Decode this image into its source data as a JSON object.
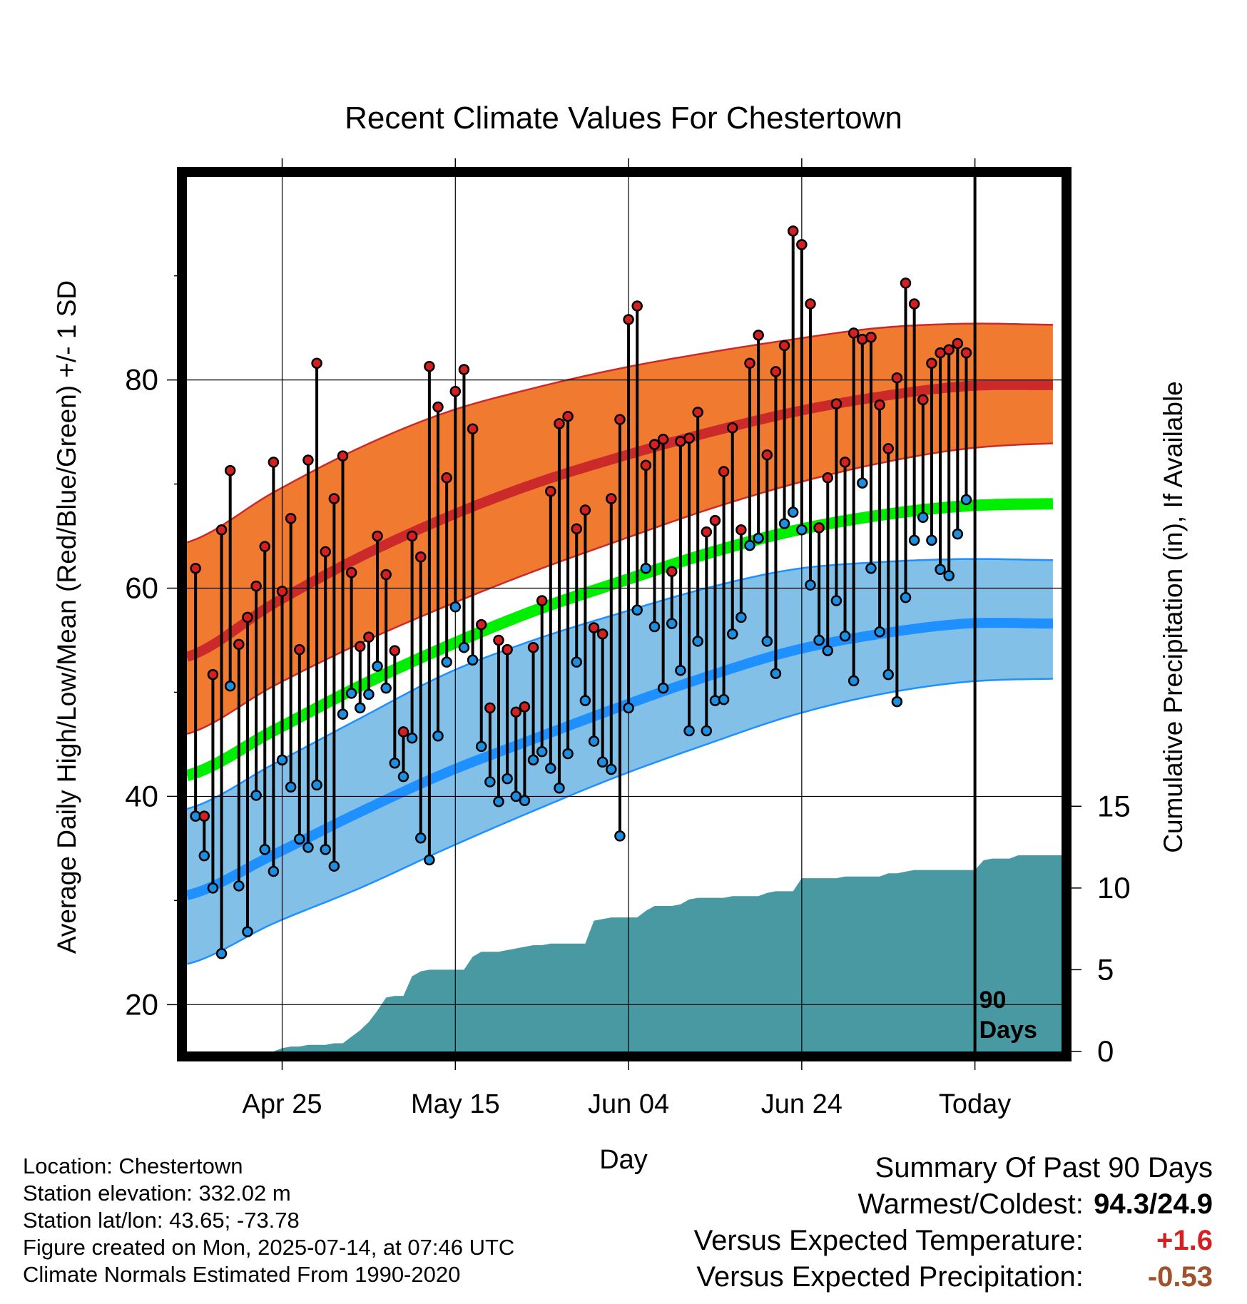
{
  "chart_data": {
    "type": "line",
    "title": "Recent Climate Values For Chestertown",
    "xlabel": "Day",
    "ylabel": "Average Daily High/Low/Mean (Red/Blue/Green) +/- 1 SD",
    "ylabel_right": "Cumulative Precipitation (in), If Available",
    "x_ticks": [
      "Apr 25",
      "May 15",
      "Jun 04",
      "Jun 24",
      "Today"
    ],
    "x_tick_days": [
      11,
      31,
      51,
      71,
      91
    ],
    "xlim": [
      0,
      101
    ],
    "y_ticks": [
      20,
      40,
      60,
      80
    ],
    "ylim": [
      15.5,
      99.5
    ],
    "y2_ticks": [
      0,
      5,
      10,
      15
    ],
    "y2lim": [
      0,
      53.5
    ],
    "today_label_line1": "90",
    "today_label_line2": "Days",
    "colors": {
      "high": "#cc2a2a",
      "high_band": "#f07b30",
      "low": "#1e90ff",
      "low_band": "#82c0e8",
      "mean": "#00ee00",
      "precip": "#4899a1",
      "high_dot": "#d42020",
      "low_dot": "#1e8fe0"
    },
    "normals": {
      "days": [
        0,
        10,
        20,
        30,
        40,
        50,
        60,
        70,
        80,
        90,
        100
      ],
      "high_mean": [
        53.4,
        58.5,
        63.0,
        66.8,
        70.0,
        72.6,
        74.9,
        76.9,
        78.4,
        79.4,
        79.5
      ],
      "high_upper": [
        64.4,
        69.2,
        73.5,
        76.9,
        79.2,
        81.1,
        82.6,
        83.9,
        85.0,
        85.4,
        85.3
      ],
      "high_lower": [
        46.0,
        50.6,
        54.7,
        58.3,
        61.6,
        64.6,
        67.5,
        70.0,
        72.0,
        73.4,
        73.9
      ],
      "low_mean": [
        30.5,
        34.4,
        38.5,
        42.3,
        45.5,
        48.6,
        51.5,
        54.0,
        55.6,
        56.6,
        56.6
      ],
      "low_upper": [
        38.8,
        43.1,
        47.5,
        51.8,
        55.0,
        57.6,
        60.0,
        61.8,
        62.5,
        62.8,
        62.7
      ],
      "low_lower": [
        23.9,
        27.8,
        31.2,
        35.0,
        38.6,
        42.0,
        45.0,
        47.8,
        49.8,
        51.0,
        51.3
      ],
      "mean": [
        42.0,
        46.3,
        50.6,
        54.4,
        57.8,
        60.6,
        63.3,
        65.5,
        67.0,
        67.9,
        68.1
      ]
    },
    "series": [
      {
        "name": "High",
        "x": [
          1,
          2,
          3,
          4,
          5,
          6,
          7,
          8,
          9,
          10,
          11,
          12,
          13,
          14,
          15,
          16,
          17,
          18,
          19,
          20,
          21,
          22,
          23,
          24,
          25,
          26,
          27,
          28,
          29,
          30,
          31,
          32,
          33,
          34,
          35,
          36,
          37,
          38,
          39,
          40,
          41,
          42,
          43,
          44,
          45,
          46,
          47,
          48,
          49,
          50,
          51,
          52,
          53,
          54,
          55,
          56,
          57,
          58,
          59,
          60,
          61,
          62,
          63,
          64,
          65,
          66,
          67,
          68,
          69,
          70,
          71,
          72,
          73,
          74,
          75,
          76,
          77,
          78,
          79,
          80,
          81,
          82,
          83,
          84,
          85,
          86,
          87,
          88,
          89,
          90
        ],
        "values": [
          61.9,
          38.1,
          51.7,
          65.6,
          71.3,
          54.6,
          57.2,
          60.2,
          64.0,
          72.1,
          59.7,
          66.7,
          54.1,
          72.3,
          81.6,
          63.5,
          68.6,
          72.7,
          61.5,
          54.4,
          55.3,
          65.0,
          61.3,
          54.0,
          46.2,
          65.0,
          63.0,
          81.3,
          77.4,
          70.6,
          78.9,
          81.0,
          75.3,
          56.5,
          48.5,
          55.0,
          54.1,
          48.1,
          48.6,
          54.3,
          58.8,
          69.3,
          75.8,
          76.5,
          65.7,
          67.5,
          56.2,
          55.6,
          68.6,
          76.2,
          85.8,
          87.1,
          71.8,
          73.8,
          74.3,
          61.6,
          74.1,
          74.4,
          76.9,
          65.4,
          66.5,
          71.2,
          75.4,
          65.6,
          81.6,
          84.3,
          72.8,
          80.8,
          83.3,
          94.3,
          93.0,
          87.3,
          65.8,
          70.6,
          77.7,
          72.1,
          84.5,
          83.9,
          84.1,
          77.6,
          73.4,
          80.2,
          89.3,
          87.3,
          78.1,
          81.6,
          82.6,
          82.9,
          83.5,
          82.6
        ]
      },
      {
        "name": "Low",
        "x": [
          1,
          2,
          3,
          4,
          5,
          6,
          7,
          8,
          9,
          10,
          11,
          12,
          13,
          14,
          15,
          16,
          17,
          18,
          19,
          20,
          21,
          22,
          23,
          24,
          25,
          26,
          27,
          28,
          29,
          30,
          31,
          32,
          33,
          34,
          35,
          36,
          37,
          38,
          39,
          40,
          41,
          42,
          43,
          44,
          45,
          46,
          47,
          48,
          49,
          50,
          51,
          52,
          53,
          54,
          55,
          56,
          57,
          58,
          59,
          60,
          61,
          62,
          63,
          64,
          65,
          66,
          67,
          68,
          69,
          70,
          71,
          72,
          73,
          74,
          75,
          76,
          77,
          78,
          79,
          80,
          81,
          82,
          83,
          84,
          85,
          86,
          87,
          88,
          89,
          90
        ],
        "values": [
          38.1,
          34.3,
          31.2,
          24.9,
          50.6,
          31.4,
          27.0,
          40.1,
          34.9,
          32.8,
          43.5,
          40.9,
          35.9,
          35.1,
          41.1,
          34.9,
          33.3,
          47.9,
          49.9,
          48.5,
          49.8,
          52.5,
          50.4,
          43.2,
          41.9,
          45.6,
          36.0,
          33.9,
          45.8,
          52.9,
          58.2,
          54.3,
          53.1,
          44.8,
          41.4,
          39.5,
          41.7,
          40.0,
          39.6,
          43.5,
          44.3,
          42.7,
          40.8,
          44.1,
          52.9,
          49.2,
          45.3,
          43.3,
          42.6,
          36.2,
          48.5,
          57.9,
          61.9,
          56.3,
          50.4,
          56.6,
          52.1,
          46.3,
          54.9,
          46.3,
          49.2,
          49.3,
          55.6,
          57.2,
          64.1,
          64.8,
          54.9,
          51.8,
          66.2,
          67.3,
          65.6,
          60.3,
          55.0,
          54.0,
          58.8,
          55.4,
          51.1,
          70.1,
          61.9,
          55.8,
          51.7,
          49.1,
          59.1,
          64.6,
          66.8,
          64.6,
          61.8,
          61.2,
          65.2,
          68.5
        ]
      },
      {
        "name": "Cumulative Precipitation",
        "x": [
          10,
          11,
          12,
          13,
          14,
          15,
          16,
          17,
          18,
          19,
          20,
          21,
          22,
          23,
          24,
          25,
          26,
          27,
          28,
          29,
          30,
          31,
          32,
          33,
          34,
          35,
          36,
          37,
          38,
          39,
          40,
          41,
          42,
          43,
          44,
          45,
          46,
          47,
          48,
          49,
          50,
          51,
          52,
          53,
          54,
          55,
          56,
          57,
          58,
          59,
          60,
          61,
          62,
          63,
          64,
          65,
          66,
          67,
          68,
          69,
          70,
          71,
          72,
          73,
          74,
          75,
          76,
          77,
          78,
          79,
          80,
          81,
          82,
          83,
          84,
          85,
          86,
          87,
          88,
          89,
          90,
          91,
          92,
          93,
          94,
          95,
          96,
          97,
          98,
          99,
          100,
          101
        ],
        "values": [
          0,
          0.2,
          0.3,
          0.3,
          0.4,
          0.4,
          0.4,
          0.5,
          0.5,
          0.9,
          1.3,
          1.8,
          2.5,
          3.3,
          3.4,
          3.4,
          4.6,
          4.9,
          5.0,
          5.0,
          5.0,
          5.0,
          5.0,
          5.8,
          6.1,
          6.1,
          6.1,
          6.2,
          6.3,
          6.4,
          6.5,
          6.5,
          6.6,
          6.6,
          6.6,
          6.6,
          6.6,
          8.0,
          8.1,
          8.2,
          8.2,
          8.2,
          8.2,
          8.6,
          8.9,
          8.9,
          8.9,
          9.0,
          9.3,
          9.4,
          9.4,
          9.4,
          9.4,
          9.5,
          9.5,
          9.5,
          9.5,
          9.7,
          9.8,
          9.8,
          9.8,
          10.6,
          10.6,
          10.6,
          10.6,
          10.6,
          10.7,
          10.7,
          10.7,
          10.7,
          10.7,
          10.9,
          10.9,
          11.0,
          11.1,
          11.1,
          11.1,
          11.1,
          11.1,
          11.1,
          11.1,
          11.1,
          11.7,
          11.8,
          11.8,
          11.8,
          12.0,
          12.0,
          12.0,
          12.0,
          12.0,
          12.0
        ]
      }
    ],
    "grid": true,
    "legend": "none"
  },
  "footer": {
    "location": "Location: Chestertown",
    "elevation": "Station elevation: 332.02 m",
    "latlon": "Station lat/lon: 43.65; -73.78",
    "created": "Figure created on Mon, 2025-07-14, at 07:46 UTC",
    "normals": "Climate Normals Estimated From 1990-2020"
  },
  "summary": {
    "title": "Summary Of Past 90 Days",
    "warm_cold_label": "Warmest/Coldest:",
    "warm_cold_value": "94.3/24.9",
    "temp_label": "Versus Expected Temperature:",
    "temp_value": "+1.6",
    "temp_color": "#d42020",
    "precip_label": "Versus Expected Precipitation:",
    "precip_value": "-0.53",
    "precip_color": "#a0522d"
  }
}
